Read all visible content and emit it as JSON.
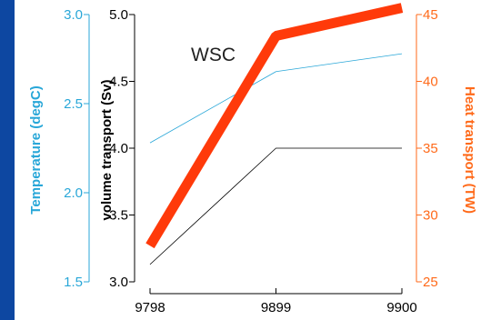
{
  "chart_data": {
    "type": "line",
    "x": [
      "9798",
      "9899",
      "9900"
    ],
    "annotation": "WSC",
    "axes": {
      "temperature": {
        "label": "Temperature (degC)",
        "color": "#29a7d8",
        "ylim": [
          1.5,
          3.0
        ],
        "ticks": [
          "1.5",
          "2.0",
          "2.5",
          "3.0"
        ],
        "tick_values": [
          1.5,
          2.0,
          2.5,
          3.0
        ]
      },
      "volume": {
        "label": "volume transport (Sv)",
        "color": "#000000",
        "ylim": [
          3.0,
          5.0
        ],
        "ticks": [
          "3.0",
          "3.5",
          "4.0",
          "4.5",
          "5.0"
        ],
        "tick_values": [
          3.0,
          3.5,
          4.0,
          4.5,
          5.0
        ]
      },
      "heat": {
        "label": "Heat transport (TW)",
        "color": "#ff3a0a",
        "tick_color": "#ff6a1a",
        "ylim": [
          25,
          45
        ],
        "ticks": [
          "25",
          "30",
          "35",
          "40",
          "45"
        ],
        "tick_values": [
          25,
          30,
          35,
          40,
          45
        ]
      }
    },
    "series": [
      {
        "axis": "volume",
        "values": [
          3.13,
          4.0,
          4.0
        ],
        "color": "#000000",
        "width": 0.8
      },
      {
        "axis": "temperature",
        "values": [
          2.28,
          2.68,
          2.78
        ],
        "color": "#29a7d8",
        "width": 0.8
      },
      {
        "axis": "heat",
        "values": [
          27.7,
          43.4,
          45.5
        ],
        "color": "#ff3a0a",
        "width": 11
      }
    ]
  }
}
